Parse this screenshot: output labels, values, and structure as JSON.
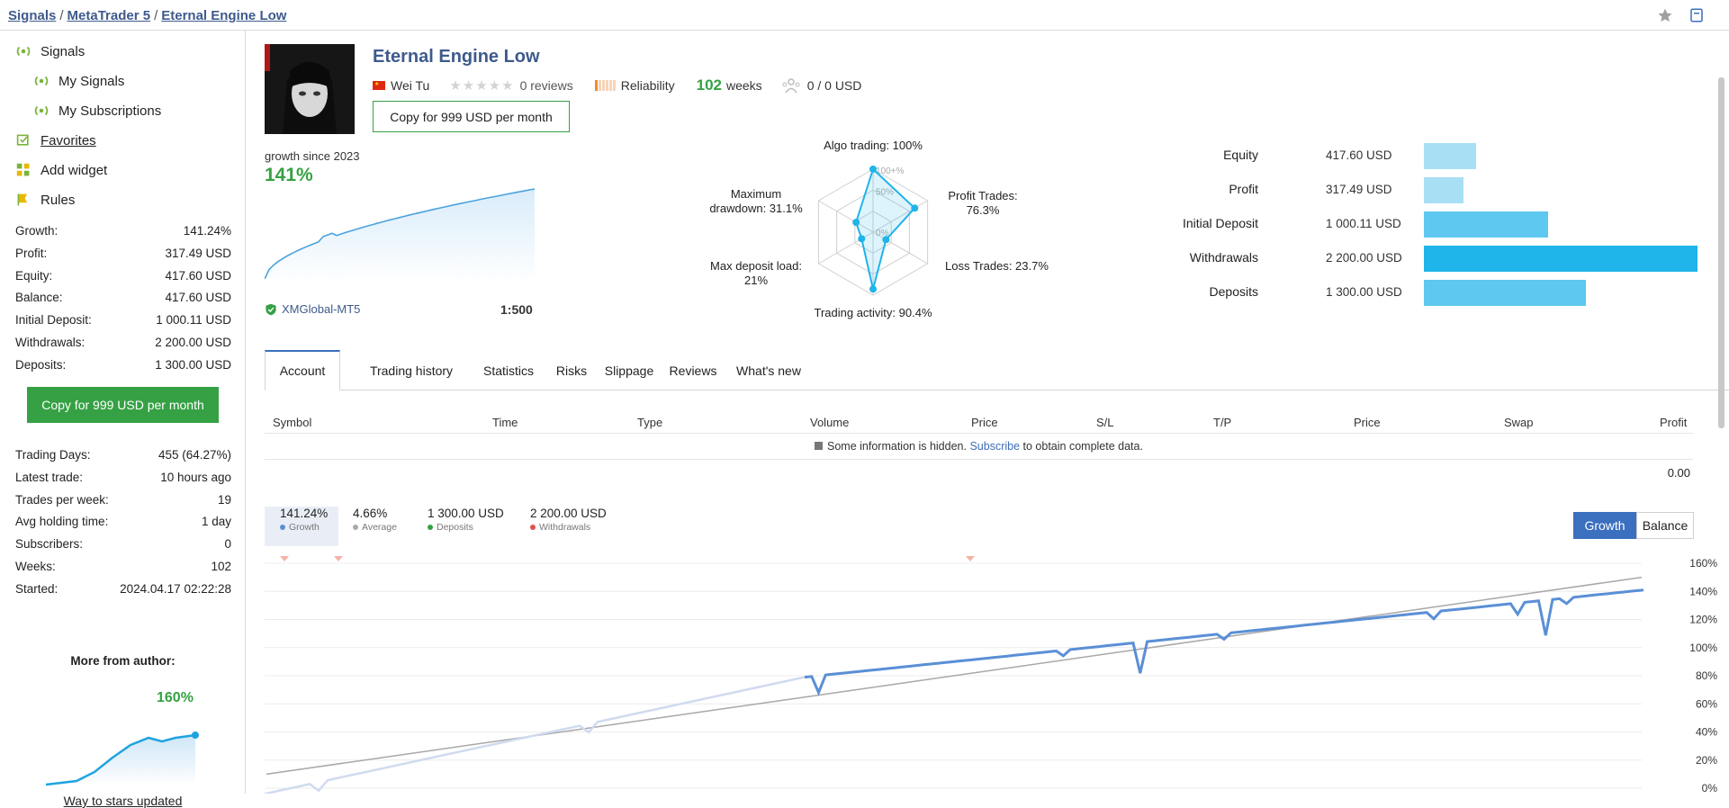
{
  "breadcrumb": [
    "Signals",
    "MetaTrader 5",
    "Eternal Engine Low"
  ],
  "sidebar": {
    "nav": [
      {
        "label": "Signals"
      },
      {
        "label": "My Signals"
      },
      {
        "label": "My Subscriptions"
      },
      {
        "label": "Favorites"
      },
      {
        "label": "Add widget"
      },
      {
        "label": "Rules"
      }
    ],
    "stats": [
      {
        "k": "Growth:",
        "v": "141.24%"
      },
      {
        "k": "Profit:",
        "v": "317.49 USD"
      },
      {
        "k": "Equity:",
        "v": "417.60 USD"
      },
      {
        "k": "Balance:",
        "v": "417.60 USD"
      },
      {
        "k": "Initial Deposit:",
        "v": "1 000.11 USD"
      },
      {
        "k": "Withdrawals:",
        "v": "2 200.00 USD"
      },
      {
        "k": "Deposits:",
        "v": "1 300.00 USD"
      }
    ],
    "copy_button": "Copy for 999 USD per month",
    "stats2": [
      {
        "k": "Trading Days:",
        "v": "455 (64.27%)"
      },
      {
        "k": "Latest trade:",
        "v": "10 hours ago"
      },
      {
        "k": "Trades per week:",
        "v": "19"
      },
      {
        "k": "Avg holding time:",
        "v": "1 day"
      },
      {
        "k": "Subscribers:",
        "v": "0"
      },
      {
        "k": "Weeks:",
        "v": "102"
      },
      {
        "k": "Started:",
        "v": "2024.04.17 02:22:28"
      }
    ],
    "more_from_author": "More from author:",
    "author_chart_value": "160%",
    "author_link": "Way to stars updated"
  },
  "signal": {
    "title": "Eternal Engine Low",
    "author": "Wei Tu",
    "reviews": "0 reviews",
    "rating": 0,
    "reliability_label": "Reliability",
    "weeks_value": "102",
    "weeks_label": "weeks",
    "subscribers": "0 / 0 USD",
    "copy_button": "Copy for 999 USD per month",
    "growth_since": "growth since 2023",
    "growth_value": "141%",
    "broker": "XMGlobal-MT5",
    "leverage": "1:500"
  },
  "radar": {
    "labels": [
      {
        "l1": "Algo trading: 100%"
      },
      {
        "l1": "Profit Trades:",
        "l2": "76.3%"
      },
      {
        "l1": "Loss Trades: 23.7%"
      },
      {
        "l1": "Trading activity: 90.4%"
      },
      {
        "l1": "Max deposit load:",
        "l2": "21%"
      },
      {
        "l1": "Maximum",
        "l2": "drawdown: 31.1%"
      }
    ],
    "values": [
      100,
      76.3,
      23.7,
      90.4,
      21,
      31.1
    ],
    "ticks": [
      "100+%",
      "50%",
      "0%"
    ]
  },
  "balance_bars": [
    {
      "label": "Equity",
      "value": "417.60 USD",
      "amount": 417.6,
      "color": "#a8dff5"
    },
    {
      "label": "Profit",
      "value": "317.49 USD",
      "amount": 317.49,
      "color": "#a8dff5"
    },
    {
      "label": "Initial Deposit",
      "value": "1 000.11 USD",
      "amount": 1000.11,
      "color": "#5ec8f0"
    },
    {
      "label": "Withdrawals",
      "value": "2 200.00 USD",
      "amount": 2200.0,
      "color": "#1fb4ea"
    },
    {
      "label": "Deposits",
      "value": "1 300.00 USD",
      "amount": 1300.0,
      "color": "#5ec8f0"
    }
  ],
  "tabs": [
    "Account",
    "Trading history",
    "Statistics",
    "Risks",
    "Slippage",
    "Reviews",
    "What's new"
  ],
  "table": {
    "headers": [
      "Symbol",
      "Time",
      "Type",
      "Volume",
      "Price",
      "S/L",
      "T/P",
      "Price",
      "Swap",
      "Profit"
    ],
    "hidden_note_pre": "Some information is hidden.",
    "hidden_note_link": "Subscribe",
    "hidden_note_post": "to obtain complete data.",
    "total": "0.00"
  },
  "summary": [
    {
      "value": "141.24%",
      "label": "Growth",
      "color": "#5a8fd6"
    },
    {
      "value": "4.66%",
      "label": "Average",
      "color": "#aaaaaa"
    },
    {
      "value": "1 300.00 USD",
      "label": "Deposits",
      "color": "#35a144"
    },
    {
      "value": "2 200.00 USD",
      "label": "Withdrawals",
      "color": "#e05050"
    }
  ],
  "toggles": [
    "Growth",
    "Balance"
  ],
  "chart_data": {
    "type": "line",
    "y_ticks": [
      "160%",
      "140%",
      "120%",
      "100%",
      "80%",
      "60%",
      "40%",
      "20%",
      "0%"
    ],
    "ylim": [
      0,
      160
    ],
    "series": [
      {
        "values_before_subscription_like": [
          -5,
          2,
          10,
          20,
          30,
          42,
          52,
          62,
          72,
          78
        ]
      },
      {
        "values": [
          72,
          80,
          84,
          88,
          91,
          94,
          98,
          101,
          105,
          109,
          113,
          117,
          121,
          125,
          129,
          133,
          137,
          141
        ]
      }
    ]
  }
}
